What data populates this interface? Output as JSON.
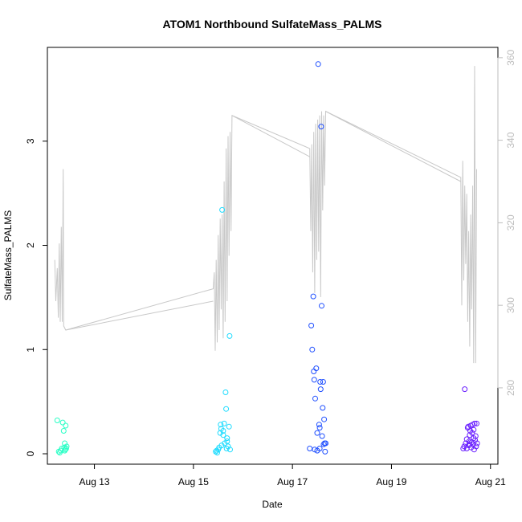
{
  "chart_data": {
    "type": "scatter",
    "title": "ATOM1 Northbound SulfateMass_PALMS",
    "xlabel": "Date",
    "ylabel": "SulfateMass_PALMS",
    "x_ticks": [
      "Aug 13",
      "Aug 15",
      "Aug 17",
      "Aug 19",
      "Aug 21"
    ],
    "x_tick_days": [
      13,
      15,
      17,
      19,
      21
    ],
    "xlim_days": [
      12.05,
      21.15
    ],
    "y_ticks": [
      0,
      1,
      2,
      3
    ],
    "ylim": [
      -0.1,
      3.9
    ],
    "y2_ticks": [
      280,
      300,
      320,
      340,
      360
    ],
    "y2lim": [
      261.5,
      362.5
    ],
    "grid": false,
    "series": [
      {
        "colors": [
          "#2affc6",
          "#1fdcff",
          "#1f4fff",
          "#6a1fff"
        ],
        "points": [
          [
            12.25,
            0.32
          ],
          [
            12.3,
            0.01
          ],
          [
            12.32,
            0.03
          ],
          [
            12.34,
            0.05
          ],
          [
            12.36,
            0.3
          ],
          [
            12.38,
            0.22
          ],
          [
            12.39,
            0.06
          ],
          [
            12.4,
            0.1
          ],
          [
            12.41,
            0.04
          ],
          [
            12.42,
            0.27
          ],
          [
            12.43,
            0.05
          ],
          [
            12.44,
            0.07
          ],
          [
            12.4,
            0.03
          ],
          [
            12.28,
            0.02
          ],
          [
            15.45,
            0.02
          ],
          [
            15.47,
            0.03
          ],
          [
            15.48,
            0.01
          ],
          [
            15.5,
            0.04
          ],
          [
            15.52,
            0.06
          ],
          [
            15.54,
            0.2
          ],
          [
            15.55,
            0.28
          ],
          [
            15.56,
            0.24
          ],
          [
            15.57,
            0.08
          ],
          [
            15.58,
            2.34
          ],
          [
            15.6,
            0.18
          ],
          [
            15.62,
            0.29
          ],
          [
            15.63,
            0.1
          ],
          [
            15.65,
            0.59
          ],
          [
            15.66,
            0.43
          ],
          [
            15.67,
            0.05
          ],
          [
            15.68,
            0.12
          ],
          [
            15.7,
            0.07
          ],
          [
            15.72,
            0.26
          ],
          [
            15.73,
            1.13
          ],
          [
            15.74,
            0.04
          ],
          [
            15.6,
            0.22
          ],
          [
            15.68,
            0.15
          ],
          [
            17.35,
            0.05
          ],
          [
            17.38,
            1.23
          ],
          [
            17.4,
            1.0
          ],
          [
            17.42,
            1.51
          ],
          [
            17.43,
            0.79
          ],
          [
            17.44,
            0.71
          ],
          [
            17.46,
            0.53
          ],
          [
            17.48,
            0.82
          ],
          [
            17.5,
            0.03
          ],
          [
            17.52,
            3.74
          ],
          [
            17.54,
            0.28
          ],
          [
            17.55,
            0.25
          ],
          [
            17.56,
            0.69
          ],
          [
            17.57,
            0.62
          ],
          [
            17.58,
            3.14
          ],
          [
            17.59,
            1.42
          ],
          [
            17.6,
            0.17
          ],
          [
            17.61,
            0.44
          ],
          [
            17.62,
            0.69
          ],
          [
            17.63,
            0.09
          ],
          [
            17.64,
            0.33
          ],
          [
            17.65,
            0.1
          ],
          [
            17.66,
            0.02
          ],
          [
            17.67,
            0.1
          ],
          [
            17.55,
            0.05
          ],
          [
            17.45,
            0.04
          ],
          [
            17.5,
            0.2
          ],
          [
            20.45,
            0.05
          ],
          [
            20.47,
            0.07
          ],
          [
            20.48,
            0.62
          ],
          [
            20.5,
            0.1
          ],
          [
            20.52,
            0.14
          ],
          [
            20.54,
            0.25
          ],
          [
            20.55,
            0.26
          ],
          [
            20.56,
            0.08
          ],
          [
            20.57,
            0.12
          ],
          [
            20.58,
            0.18
          ],
          [
            20.59,
            0.22
          ],
          [
            20.6,
            0.27
          ],
          [
            20.61,
            0.06
          ],
          [
            20.62,
            0.11
          ],
          [
            20.63,
            0.2
          ],
          [
            20.64,
            0.28
          ],
          [
            20.65,
            0.09
          ],
          [
            20.66,
            0.23
          ],
          [
            20.67,
            0.04
          ],
          [
            20.68,
            0.29
          ],
          [
            20.69,
            0.13
          ],
          [
            20.7,
            0.17
          ],
          [
            20.71,
            0.07
          ],
          [
            20.72,
            0.29
          ],
          [
            20.73,
            0.1
          ],
          [
            20.52,
            0.05
          ],
          [
            20.58,
            0.09
          ],
          [
            20.66,
            0.15
          ]
        ]
      },
      {
        "axis": "right",
        "color": "#c8c8c8",
        "points": [
          [
            12.2,
            311
          ],
          [
            12.22,
            301
          ],
          [
            12.25,
            309
          ],
          [
            12.27,
            297
          ],
          [
            12.29,
            315
          ],
          [
            12.31,
            296
          ],
          [
            12.33,
            319
          ],
          [
            12.35,
            296
          ],
          [
            12.37,
            333
          ],
          [
            12.38,
            295
          ],
          [
            12.42,
            294
          ],
          [
            15.4,
            304
          ],
          [
            15.42,
            308
          ],
          [
            15.44,
            289
          ],
          [
            15.46,
            311
          ],
          [
            15.48,
            291
          ],
          [
            15.5,
            317
          ],
          [
            15.52,
            294
          ],
          [
            15.54,
            321
          ],
          [
            15.56,
            299
          ],
          [
            15.58,
            322
          ],
          [
            15.6,
            292
          ],
          [
            15.62,
            330
          ],
          [
            15.64,
            296
          ],
          [
            15.66,
            338
          ],
          [
            15.68,
            301
          ],
          [
            15.7,
            341
          ],
          [
            15.72,
            312
          ],
          [
            15.74,
            342
          ],
          [
            15.76,
            318
          ],
          [
            15.78,
            346
          ],
          [
            17.35,
            338
          ],
          [
            17.37,
            318
          ],
          [
            17.39,
            339
          ],
          [
            17.41,
            308
          ],
          [
            17.43,
            342
          ],
          [
            17.45,
            303
          ],
          [
            17.47,
            344
          ],
          [
            17.49,
            311
          ],
          [
            17.51,
            345
          ],
          [
            17.53,
            313
          ],
          [
            17.55,
            346
          ],
          [
            17.57,
            302
          ],
          [
            17.59,
            347
          ],
          [
            17.61,
            323
          ],
          [
            17.63,
            346
          ],
          [
            17.65,
            329
          ],
          [
            17.67,
            347
          ],
          [
            20.4,
            331
          ],
          [
            20.42,
            300
          ],
          [
            20.44,
            335
          ],
          [
            20.46,
            306
          ],
          [
            20.48,
            329
          ],
          [
            20.5,
            310
          ],
          [
            20.52,
            327
          ],
          [
            20.54,
            296
          ],
          [
            20.56,
            318
          ],
          [
            20.58,
            290
          ],
          [
            20.6,
            322
          ],
          [
            20.62,
            299
          ],
          [
            20.64,
            329
          ],
          [
            20.66,
            286
          ],
          [
            20.68,
            358
          ],
          [
            20.7,
            286
          ],
          [
            20.72,
            333
          ]
        ]
      }
    ],
    "line_segments_extra": [
      [
        [
          12.42,
          294
        ],
        [
          15.4,
          301
        ]
      ],
      [
        [
          15.78,
          346
        ],
        [
          17.35,
          336
        ]
      ],
      [
        [
          17.67,
          347
        ],
        [
          20.4,
          330
        ]
      ]
    ]
  }
}
